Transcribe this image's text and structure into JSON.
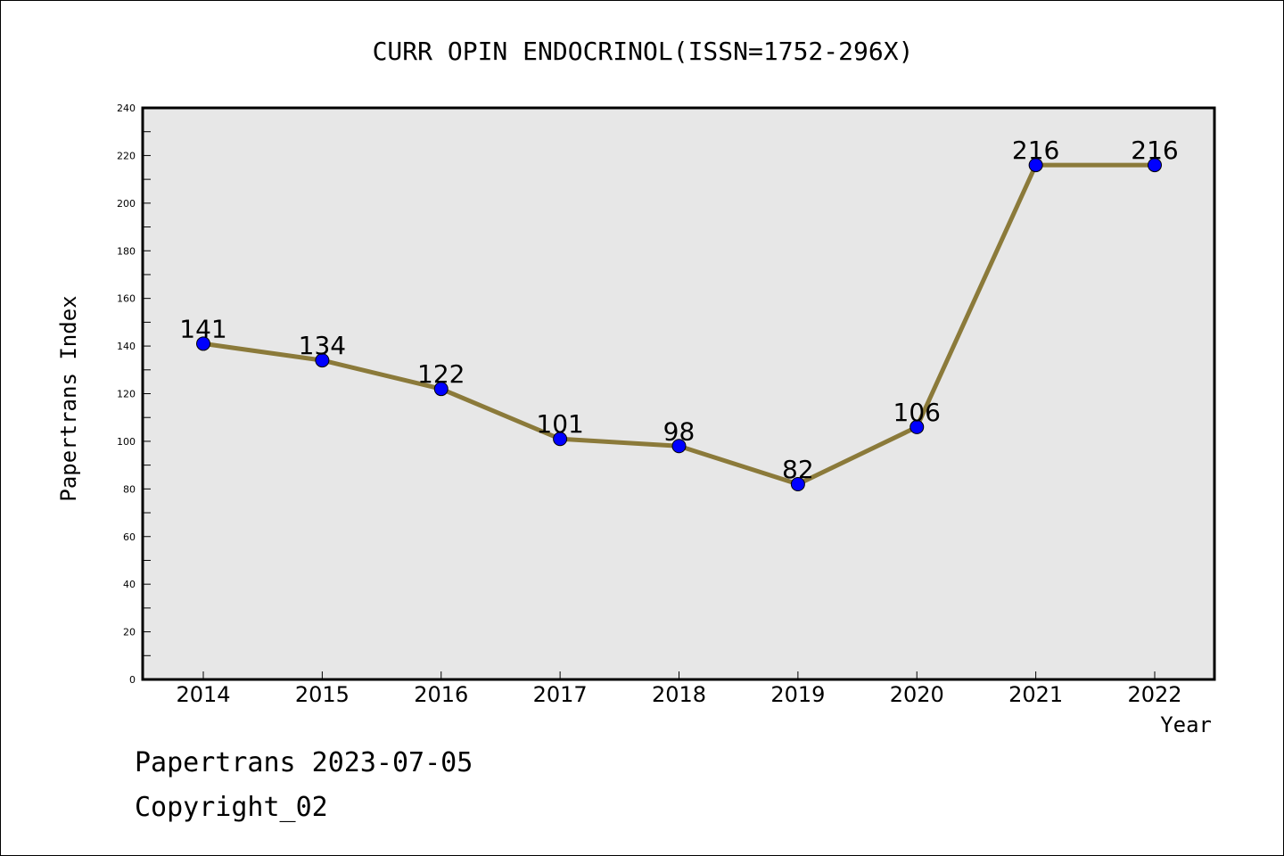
{
  "chart_data": {
    "type": "line",
    "title": "CURR OPIN ENDOCRINOL(ISSN=1752-296X)",
    "xlabel": "Year",
    "ylabel": "Papertrans Index",
    "categories": [
      "2014",
      "2015",
      "2016",
      "2017",
      "2018",
      "2019",
      "2020",
      "2021",
      "2022"
    ],
    "values": [
      141,
      134,
      122,
      101,
      98,
      82,
      106,
      216,
      216
    ],
    "data_labels": [
      "141",
      "134",
      "122",
      "101",
      "98",
      "82",
      "106",
      "216",
      "216"
    ],
    "ylim": [
      0,
      240
    ],
    "y_ticks": [
      0,
      20,
      40,
      60,
      80,
      100,
      120,
      140,
      160,
      180,
      200,
      220,
      240
    ],
    "y_tick_labels": [
      "0",
      "20",
      "40",
      "60",
      "80",
      "100",
      "120",
      "140",
      "160",
      "180",
      "200",
      "220",
      "240"
    ],
    "grid": false,
    "colors": {
      "line": "#8b7a3a",
      "marker": "#0000ff",
      "plot_background": "#e7e7e7"
    }
  },
  "footer": {
    "line1": "Papertrans 2023-07-05",
    "line2": "Copyright_02"
  }
}
